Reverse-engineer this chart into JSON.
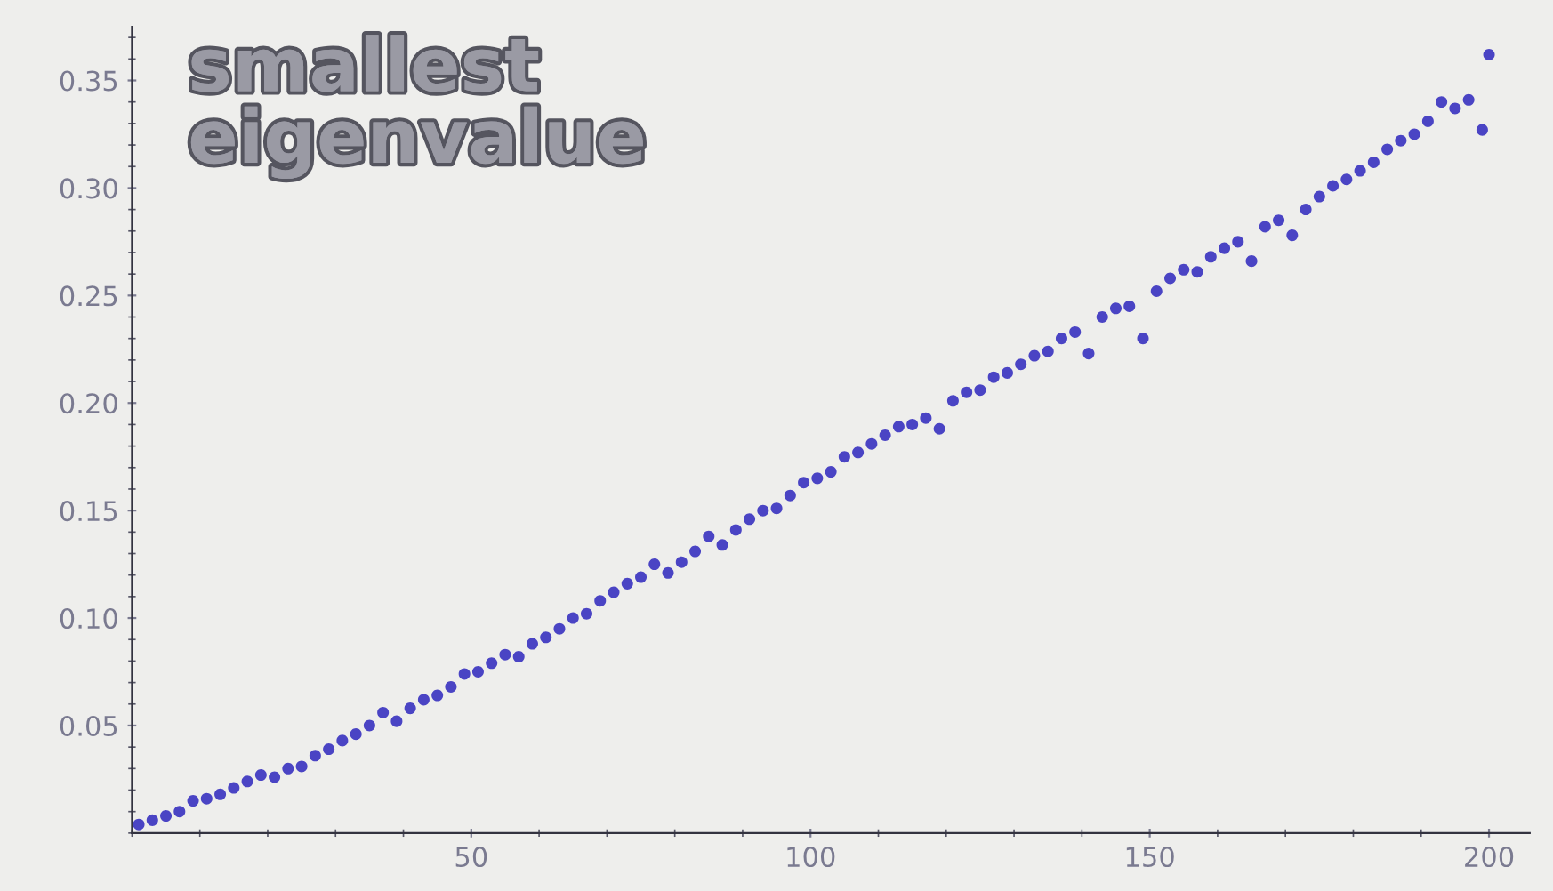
{
  "chart_data": {
    "type": "scatter",
    "annotations": [
      "smallest\neigenvalue"
    ],
    "x": [
      1,
      3,
      5,
      7,
      9,
      11,
      13,
      15,
      17,
      19,
      21,
      23,
      25,
      27,
      29,
      31,
      33,
      35,
      37,
      39,
      41,
      43,
      45,
      47,
      49,
      51,
      53,
      55,
      57,
      59,
      61,
      63,
      65,
      67,
      69,
      71,
      73,
      75,
      77,
      79,
      81,
      83,
      85,
      87,
      89,
      91,
      93,
      95,
      97,
      99,
      101,
      103,
      105,
      107,
      109,
      111,
      113,
      115,
      117,
      119,
      121,
      123,
      125,
      127,
      129,
      131,
      133,
      135,
      137,
      139,
      141,
      143,
      145,
      147,
      149,
      151,
      153,
      155,
      157,
      159,
      161,
      163,
      165,
      167,
      169,
      171,
      173,
      175,
      177,
      179,
      181,
      183,
      185,
      187,
      189,
      191,
      193,
      195,
      197,
      199,
      200
    ],
    "series": [
      {
        "color": "#4a44c4",
        "values": [
          0.004,
          0.006,
          0.008,
          0.01,
          0.015,
          0.016,
          0.018,
          0.021,
          0.024,
          0.027,
          0.026,
          0.03,
          0.031,
          0.036,
          0.039,
          0.043,
          0.046,
          0.05,
          0.056,
          0.052,
          0.058,
          0.062,
          0.064,
          0.068,
          0.074,
          0.075,
          0.079,
          0.083,
          0.082,
          0.088,
          0.091,
          0.095,
          0.1,
          0.102,
          0.108,
          0.112,
          0.116,
          0.119,
          0.125,
          0.121,
          0.126,
          0.131,
          0.138,
          0.134,
          0.141,
          0.146,
          0.15,
          0.151,
          0.157,
          0.163,
          0.165,
          0.168,
          0.175,
          0.177,
          0.181,
          0.185,
          0.189,
          0.19,
          0.193,
          0.188,
          0.201,
          0.205,
          0.206,
          0.212,
          0.214,
          0.218,
          0.222,
          0.224,
          0.23,
          0.233,
          0.223,
          0.24,
          0.244,
          0.245,
          0.23,
          0.252,
          0.258,
          0.262,
          0.261,
          0.268,
          0.272,
          0.275,
          0.266,
          0.282,
          0.285,
          0.278,
          0.29,
          0.296,
          0.301,
          0.304,
          0.308,
          0.312,
          0.318,
          0.322,
          0.325,
          0.331,
          0.34,
          0.337,
          0.341,
          0.327,
          0.362
        ]
      }
    ],
    "xlim": [
      0,
      206
    ],
    "ylim": [
      0,
      0.375
    ],
    "xticks": [
      50,
      100,
      150,
      200
    ],
    "yticks": [
      {
        "value": 0.05,
        "label": "0.05"
      },
      {
        "value": 0.1,
        "label": "0.10"
      },
      {
        "value": 0.15,
        "label": "0.15"
      },
      {
        "value": 0.2,
        "label": "0.20"
      },
      {
        "value": 0.25,
        "label": "0.25"
      },
      {
        "value": 0.3,
        "label": "0.30"
      },
      {
        "value": 0.35,
        "label": "0.35"
      }
    ],
    "marker": "circle",
    "grid": false
  }
}
